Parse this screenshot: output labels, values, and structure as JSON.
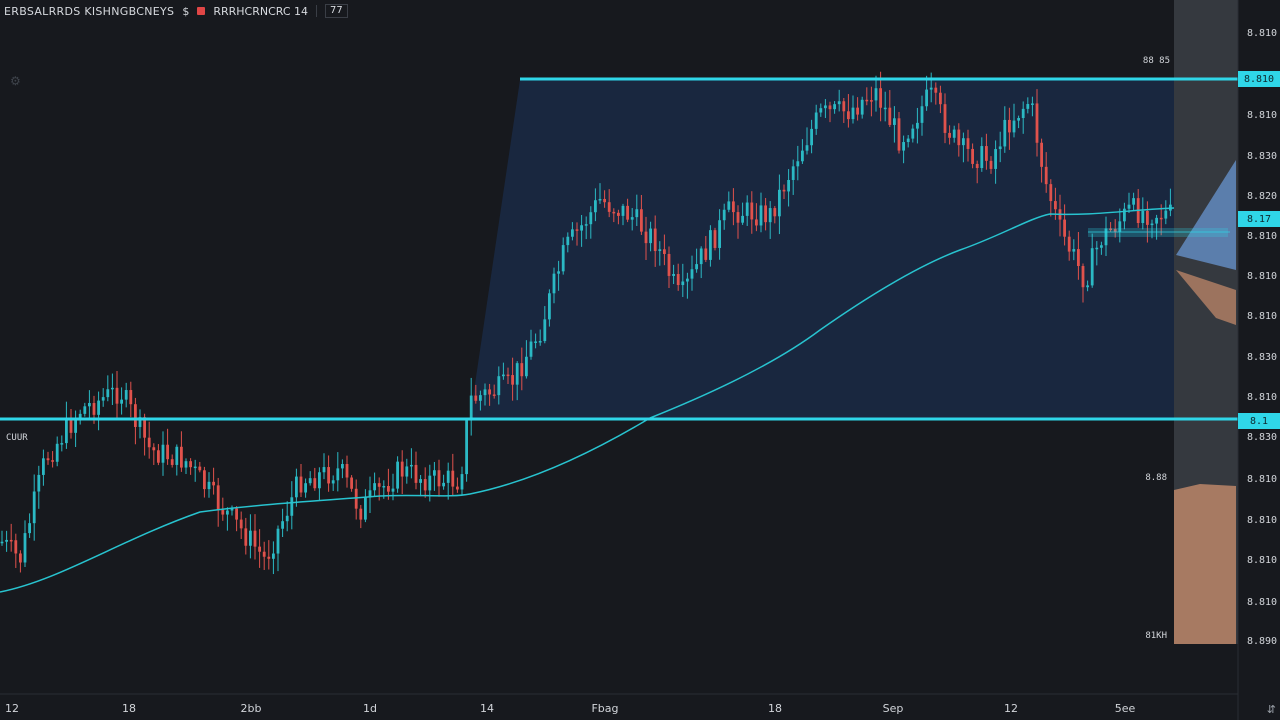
{
  "header": {
    "symbol_label": "ERBSALRRDS KISHNGBCNEYS",
    "currency_glyph": "$",
    "indicator_label": "RRRHCRNCRC 14",
    "small_btn_label": "77"
  },
  "colors": {
    "background": "#17191e",
    "zone_fill": "#1a2a45",
    "level_line": "#2fd6e8",
    "ma_line": "#28c3cf",
    "up_candle": "#2bb9c4",
    "down_candle": "#e0524c",
    "right_panel": "#3b3f45",
    "tan_block": "#a77a62",
    "blue_block": "#5f86b8"
  },
  "chart_data": {
    "type": "candlestick",
    "y_axis_labels": [
      "8.810",
      "8.800",
      "8.810",
      "8.830",
      "8.820",
      "8.810",
      "8.810",
      "8.810",
      "8.830",
      "8.810",
      "8.830",
      "8.810",
      "8.810",
      "8.810",
      "8.810",
      "8.890"
    ],
    "x_axis_labels": [
      "12",
      "18",
      "2bb",
      "1d",
      "14",
      "Fbag",
      "18",
      "Sep",
      "12",
      "5ee"
    ],
    "levels": [
      {
        "name": "upper",
        "label": "88 85",
        "price_tag": "8.810"
      },
      {
        "name": "lower",
        "label": "CUUR",
        "price_tag": "8.1"
      }
    ],
    "zone_labels": [
      "8.88",
      "81KH"
    ],
    "current_price_tag": "8.17",
    "moving_average": {
      "type": "line"
    }
  }
}
